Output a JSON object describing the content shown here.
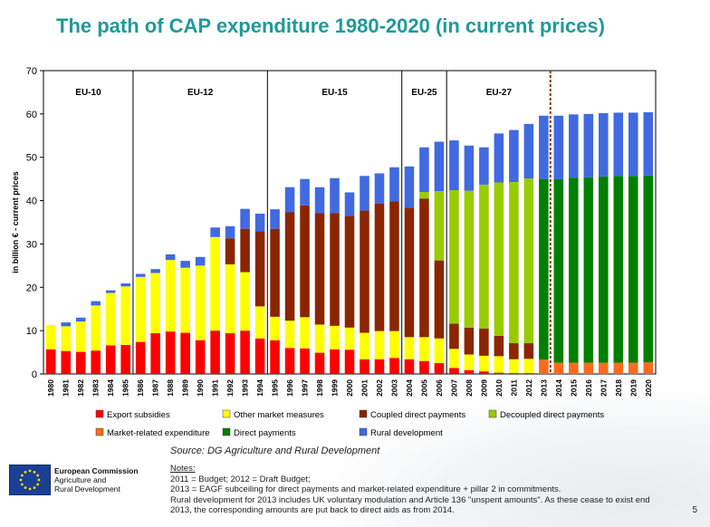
{
  "title": "The path of CAP expenditure 1980-2020 (in current prices)",
  "source": "Source: DG Agriculture and Rural Development",
  "notes": {
    "heading": "Notes:",
    "lines": [
      "2011 = Budget; 2012 = Draft Budget;",
      "2013 = EAGF subceiling for direct payments and market-related expenditure + pillar 2 in commitments.",
      "Rural development for 2013 includes UK voluntary modulation and Article 136 \"unspent amounts\". As these cease to exist end",
      "2013, the corresponding amounts are put back to direct aids as from 2014."
    ]
  },
  "logo": {
    "org1": "European Commission",
    "org2": "Agriculture and",
    "org3": "Rural Development"
  },
  "page_number": "5",
  "colors": {
    "title": "#1f9a9a",
    "export_subsidies": "#ff0000",
    "other_market_measures": "#ffff00",
    "coupled_direct_payments": "#8b2500",
    "decoupled_direct_payments": "#99cc00",
    "market_related_expenditure": "#ff6a1a",
    "direct_payments": "#008000",
    "rural_development": "#4169e1"
  },
  "chart_data": {
    "type": "bar",
    "stacked": true,
    "title": "The path of CAP expenditure 1980-2020 (in current prices)",
    "ylabel": "in billion € - current prices",
    "ylim": [
      0,
      70
    ],
    "yticks": [
      0,
      10,
      20,
      30,
      40,
      50,
      60,
      70
    ],
    "categories": [
      "1980",
      "1981",
      "1982",
      "1983",
      "1984",
      "1985",
      "1986",
      "1987",
      "1988",
      "1989",
      "1990",
      "1991",
      "1992",
      "1993",
      "1994",
      "1995",
      "1996",
      "1997",
      "1998",
      "1999",
      "2000",
      "2001",
      "2002",
      "2003",
      "2004",
      "2005",
      "2006",
      "2007",
      "2008",
      "2009",
      "2010",
      "2011",
      "2012",
      "2013",
      "2014",
      "2015",
      "2016",
      "2017",
      "2018",
      "2019",
      "2020"
    ],
    "series": [
      {
        "name": "Export subsidies",
        "color": "#ff0000",
        "values": [
          5.7,
          5.3,
          5.1,
          5.4,
          6.6,
          6.7,
          7.4,
          9.4,
          9.8,
          9.5,
          7.8,
          10.0,
          9.4,
          10.0,
          8.2,
          7.8,
          6.0,
          5.9,
          4.9,
          5.7,
          5.6,
          3.4,
          3.4,
          3.7,
          3.4,
          3.0,
          2.5,
          1.4,
          0.9,
          0.6,
          0.3,
          0.2,
          0.2,
          0,
          0,
          0,
          0,
          0,
          0,
          0,
          0
        ]
      },
      {
        "name": "Other market measures",
        "color": "#ffff00",
        "values": [
          5.6,
          5.7,
          7.0,
          10.4,
          12.1,
          13.5,
          15.0,
          13.9,
          16.5,
          15.0,
          17.2,
          21.6,
          15.9,
          13.5,
          7.4,
          5.4,
          6.3,
          7.2,
          6.5,
          5.4,
          5.1,
          6.1,
          6.5,
          6.2,
          5.1,
          5.5,
          5.7,
          4.4,
          3.6,
          3.6,
          3.8,
          3.2,
          3.3,
          0,
          0,
          0,
          0,
          0,
          0,
          0,
          0
        ]
      },
      {
        "name": "Coupled direct payments",
        "color": "#8b2500",
        "values": [
          0,
          0,
          0,
          0,
          0,
          0,
          0,
          0,
          0,
          0,
          0,
          0,
          6.0,
          10.0,
          17.3,
          20.3,
          25.0,
          25.8,
          25.7,
          26.0,
          25.8,
          28.2,
          29.4,
          29.9,
          29.9,
          32.0,
          18.0,
          5.8,
          6.2,
          6.3,
          4.7,
          3.7,
          3.6,
          0,
          0,
          0,
          0,
          0,
          0,
          0,
          0
        ]
      },
      {
        "name": "Decoupled direct payments",
        "color": "#99cc00",
        "values": [
          0,
          0,
          0,
          0,
          0,
          0,
          0,
          0,
          0,
          0,
          0,
          0,
          0,
          0,
          0,
          0,
          0,
          0,
          0,
          0,
          0,
          0,
          0,
          0,
          0,
          1.5,
          16.0,
          30.8,
          31.6,
          33.2,
          35.4,
          37.2,
          38.0,
          0,
          0,
          0,
          0,
          0,
          0,
          0,
          0
        ]
      },
      {
        "name": "Market-related expenditure",
        "color": "#ff6a1a",
        "values": [
          0,
          0,
          0,
          0,
          0,
          0,
          0,
          0,
          0,
          0,
          0,
          0,
          0,
          0,
          0,
          0,
          0,
          0,
          0,
          0,
          0,
          0,
          0,
          0,
          0,
          0,
          0,
          0,
          0,
          0,
          0,
          0,
          0,
          3.3,
          2.6,
          2.6,
          2.6,
          2.6,
          2.6,
          2.6,
          2.7
        ]
      },
      {
        "name": "Direct payments",
        "color": "#008000",
        "values": [
          0,
          0,
          0,
          0,
          0,
          0,
          0,
          0,
          0,
          0,
          0,
          0,
          0,
          0,
          0,
          0,
          0,
          0,
          0,
          0,
          0,
          0,
          0,
          0,
          0,
          0,
          0,
          0,
          0,
          0,
          0,
          0,
          0,
          41.7,
          42.4,
          42.7,
          42.8,
          43.0,
          43.1,
          43.1,
          43.1
        ]
      },
      {
        "name": "Rural development",
        "color": "#4169e1",
        "values": [
          0,
          0.9,
          0.9,
          1.0,
          0.6,
          0.7,
          0.7,
          0.9,
          1.3,
          1.6,
          2.0,
          2.2,
          2.8,
          4.6,
          4.1,
          4.5,
          5.8,
          6.1,
          6.0,
          8.1,
          5.4,
          8.0,
          7.0,
          7.9,
          9.5,
          10.3,
          11.4,
          11.5,
          10.4,
          8.6,
          11.3,
          12.0,
          12.6,
          14.6,
          14.6,
          14.6,
          14.6,
          14.6,
          14.6,
          14.6,
          14.6
        ]
      }
    ],
    "periods": [
      {
        "label": "EU-10",
        "start": "1980"
      },
      {
        "label": "EU-12",
        "start": "1986"
      },
      {
        "label": "EU-15",
        "start": "1995"
      },
      {
        "label": "EU-25",
        "start": "2004"
      },
      {
        "label": "EU-27",
        "start": "2007"
      }
    ],
    "marker_line_year": "2014",
    "legend": {
      "position": "bottom",
      "rows": [
        [
          "Export subsidies",
          "Other market measures",
          "Coupled direct payments",
          "Decoupled direct payments"
        ],
        [
          "Market-related expenditure",
          "Direct payments",
          "Rural development"
        ]
      ]
    }
  }
}
